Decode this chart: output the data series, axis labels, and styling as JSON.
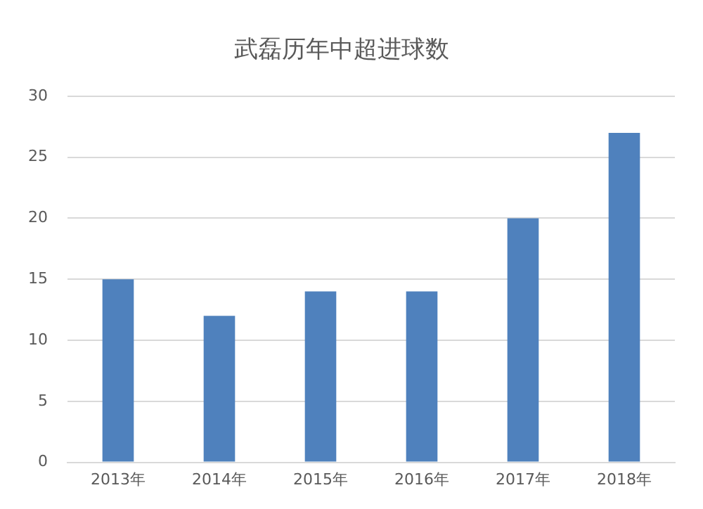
{
  "chart_data": {
    "type": "bar",
    "title": "武磊历年中超进球数",
    "categories": [
      "2013年",
      "2014年",
      "2015年",
      "2016年",
      "2017年",
      "2018年"
    ],
    "values": [
      15,
      12,
      14,
      14,
      20,
      27
    ],
    "color": "#4f81bd",
    "ylim": [
      0,
      30
    ],
    "yticks": [
      0,
      5,
      10,
      15,
      20,
      25,
      30
    ],
    "grid": "y"
  }
}
